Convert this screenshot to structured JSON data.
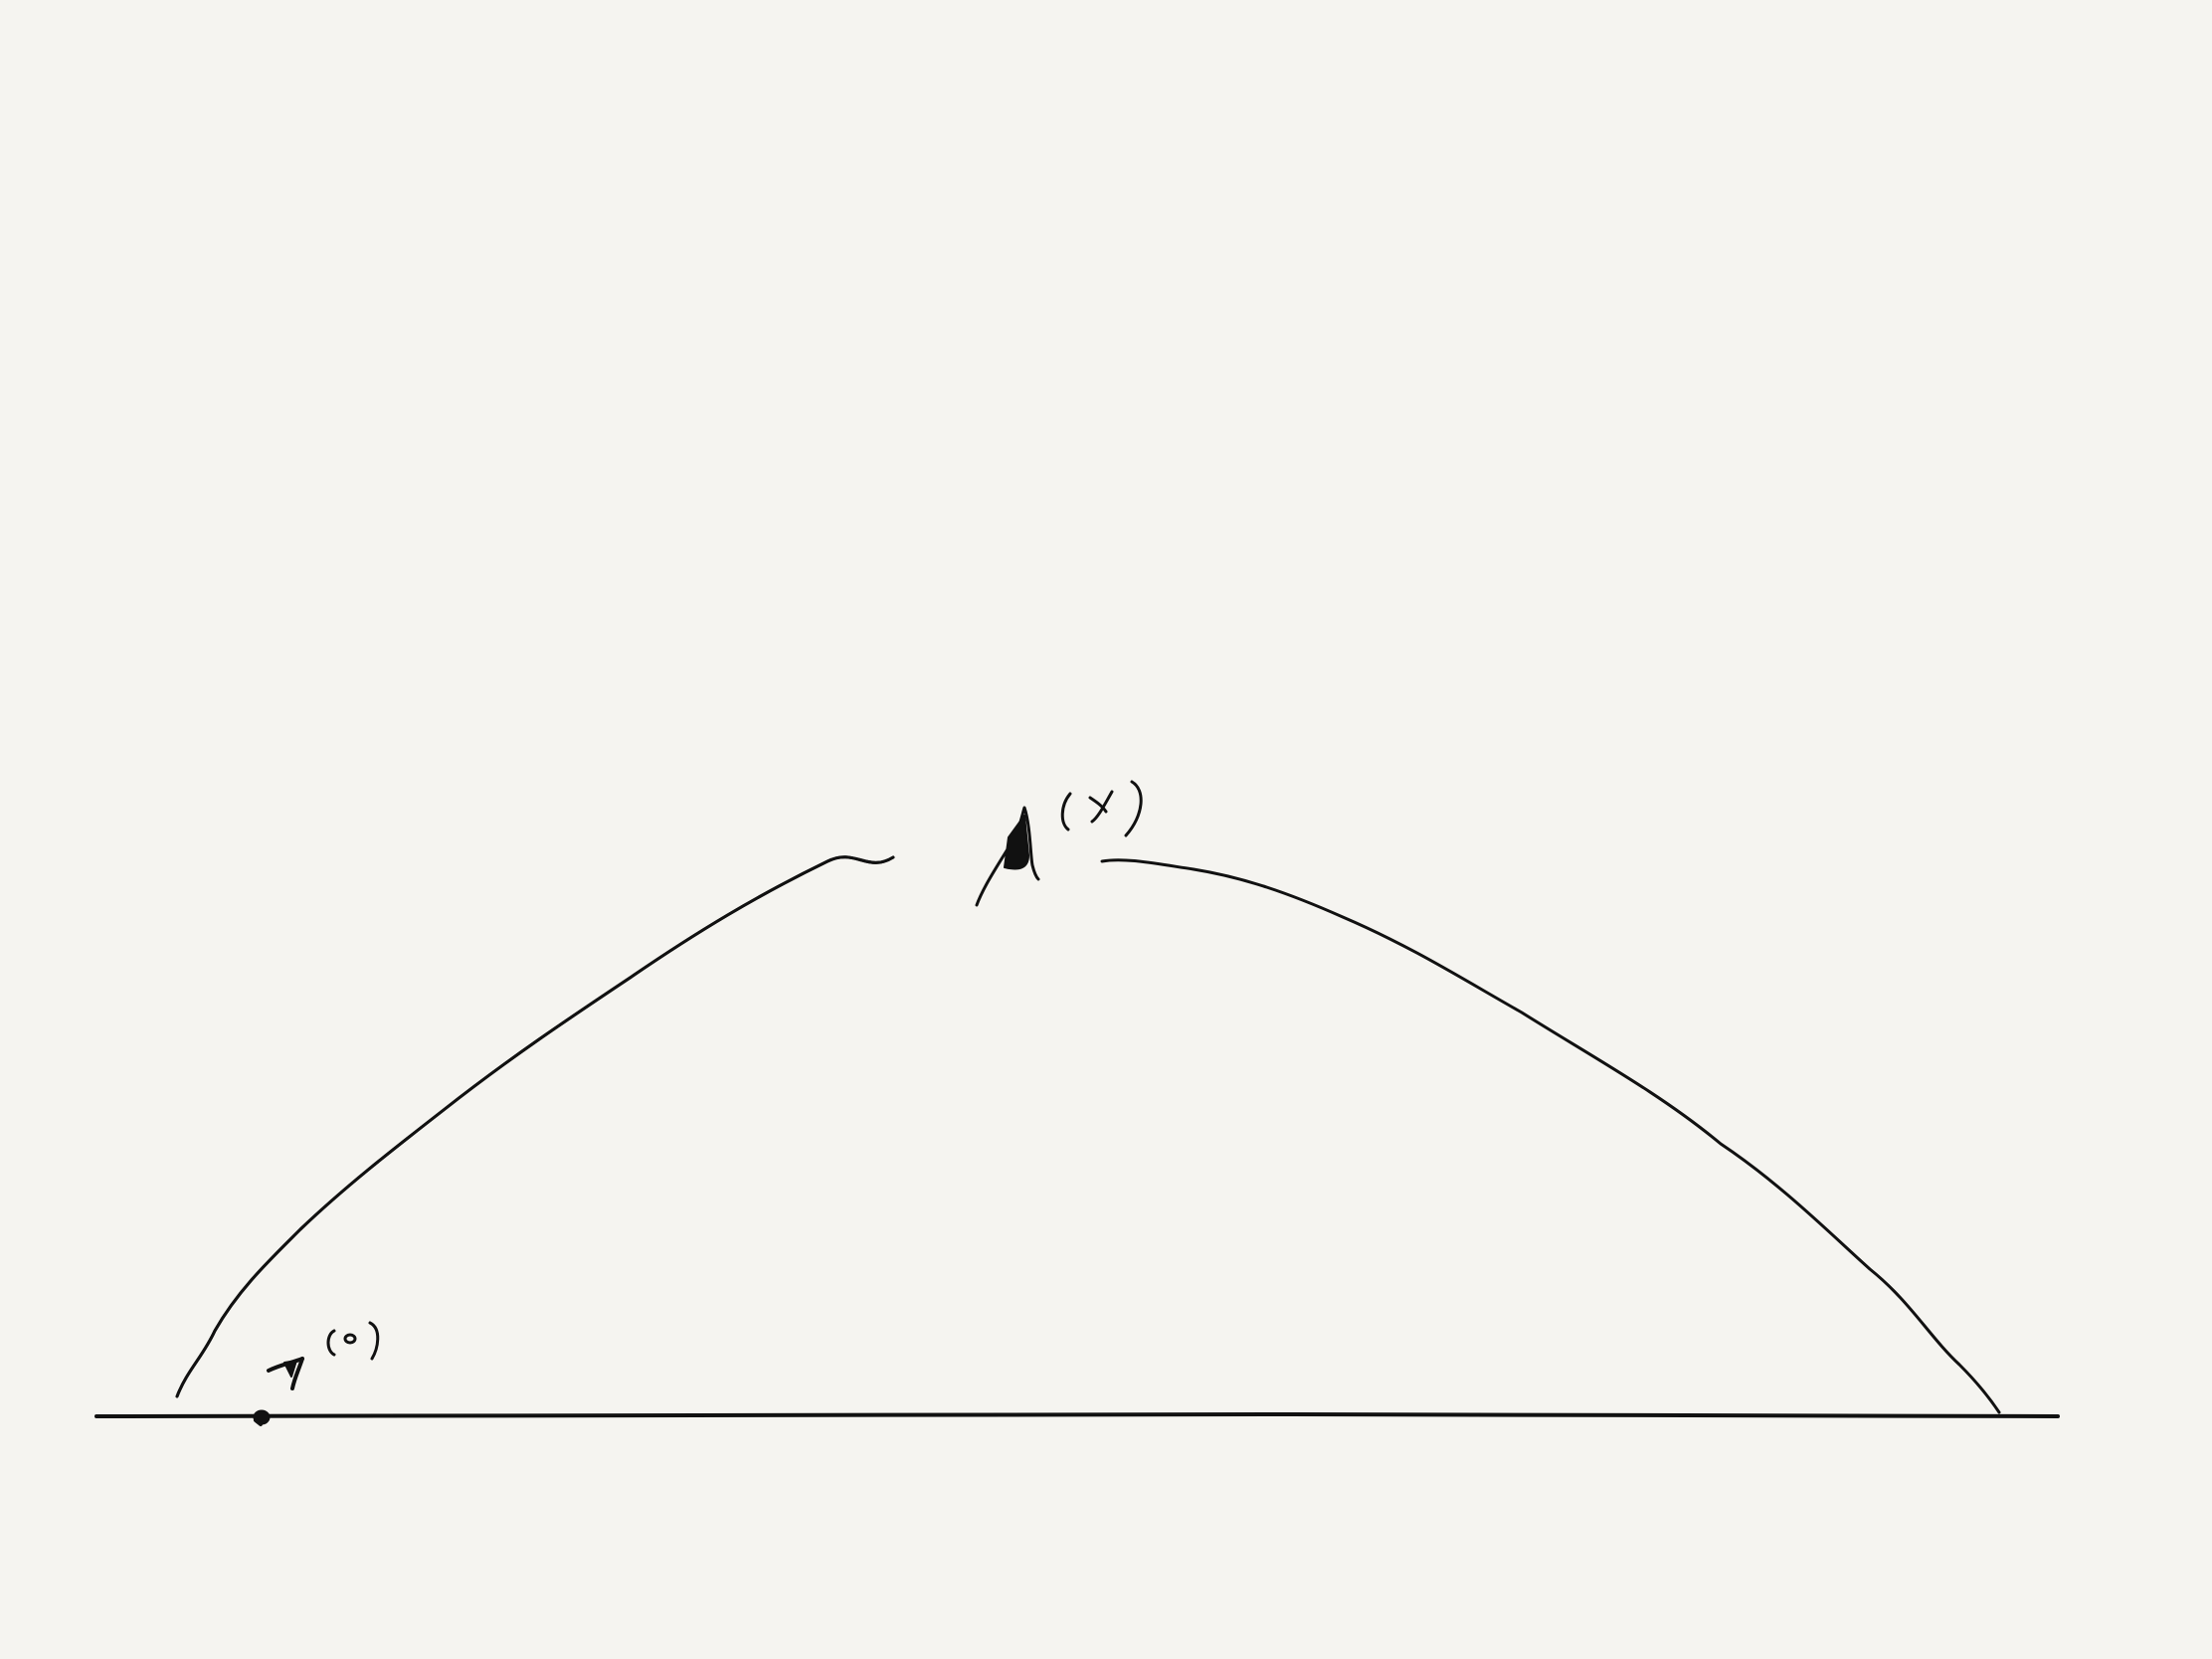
{
  "canvas": {
    "background": "#f5f4f0",
    "ink_color": "#111111"
  },
  "sketch": {
    "strokes": [
      "baseline",
      "arc-left-segment",
      "arc-right-segment",
      "point-start",
      "label-start-handwritten",
      "label-apex-handwritten"
    ]
  }
}
